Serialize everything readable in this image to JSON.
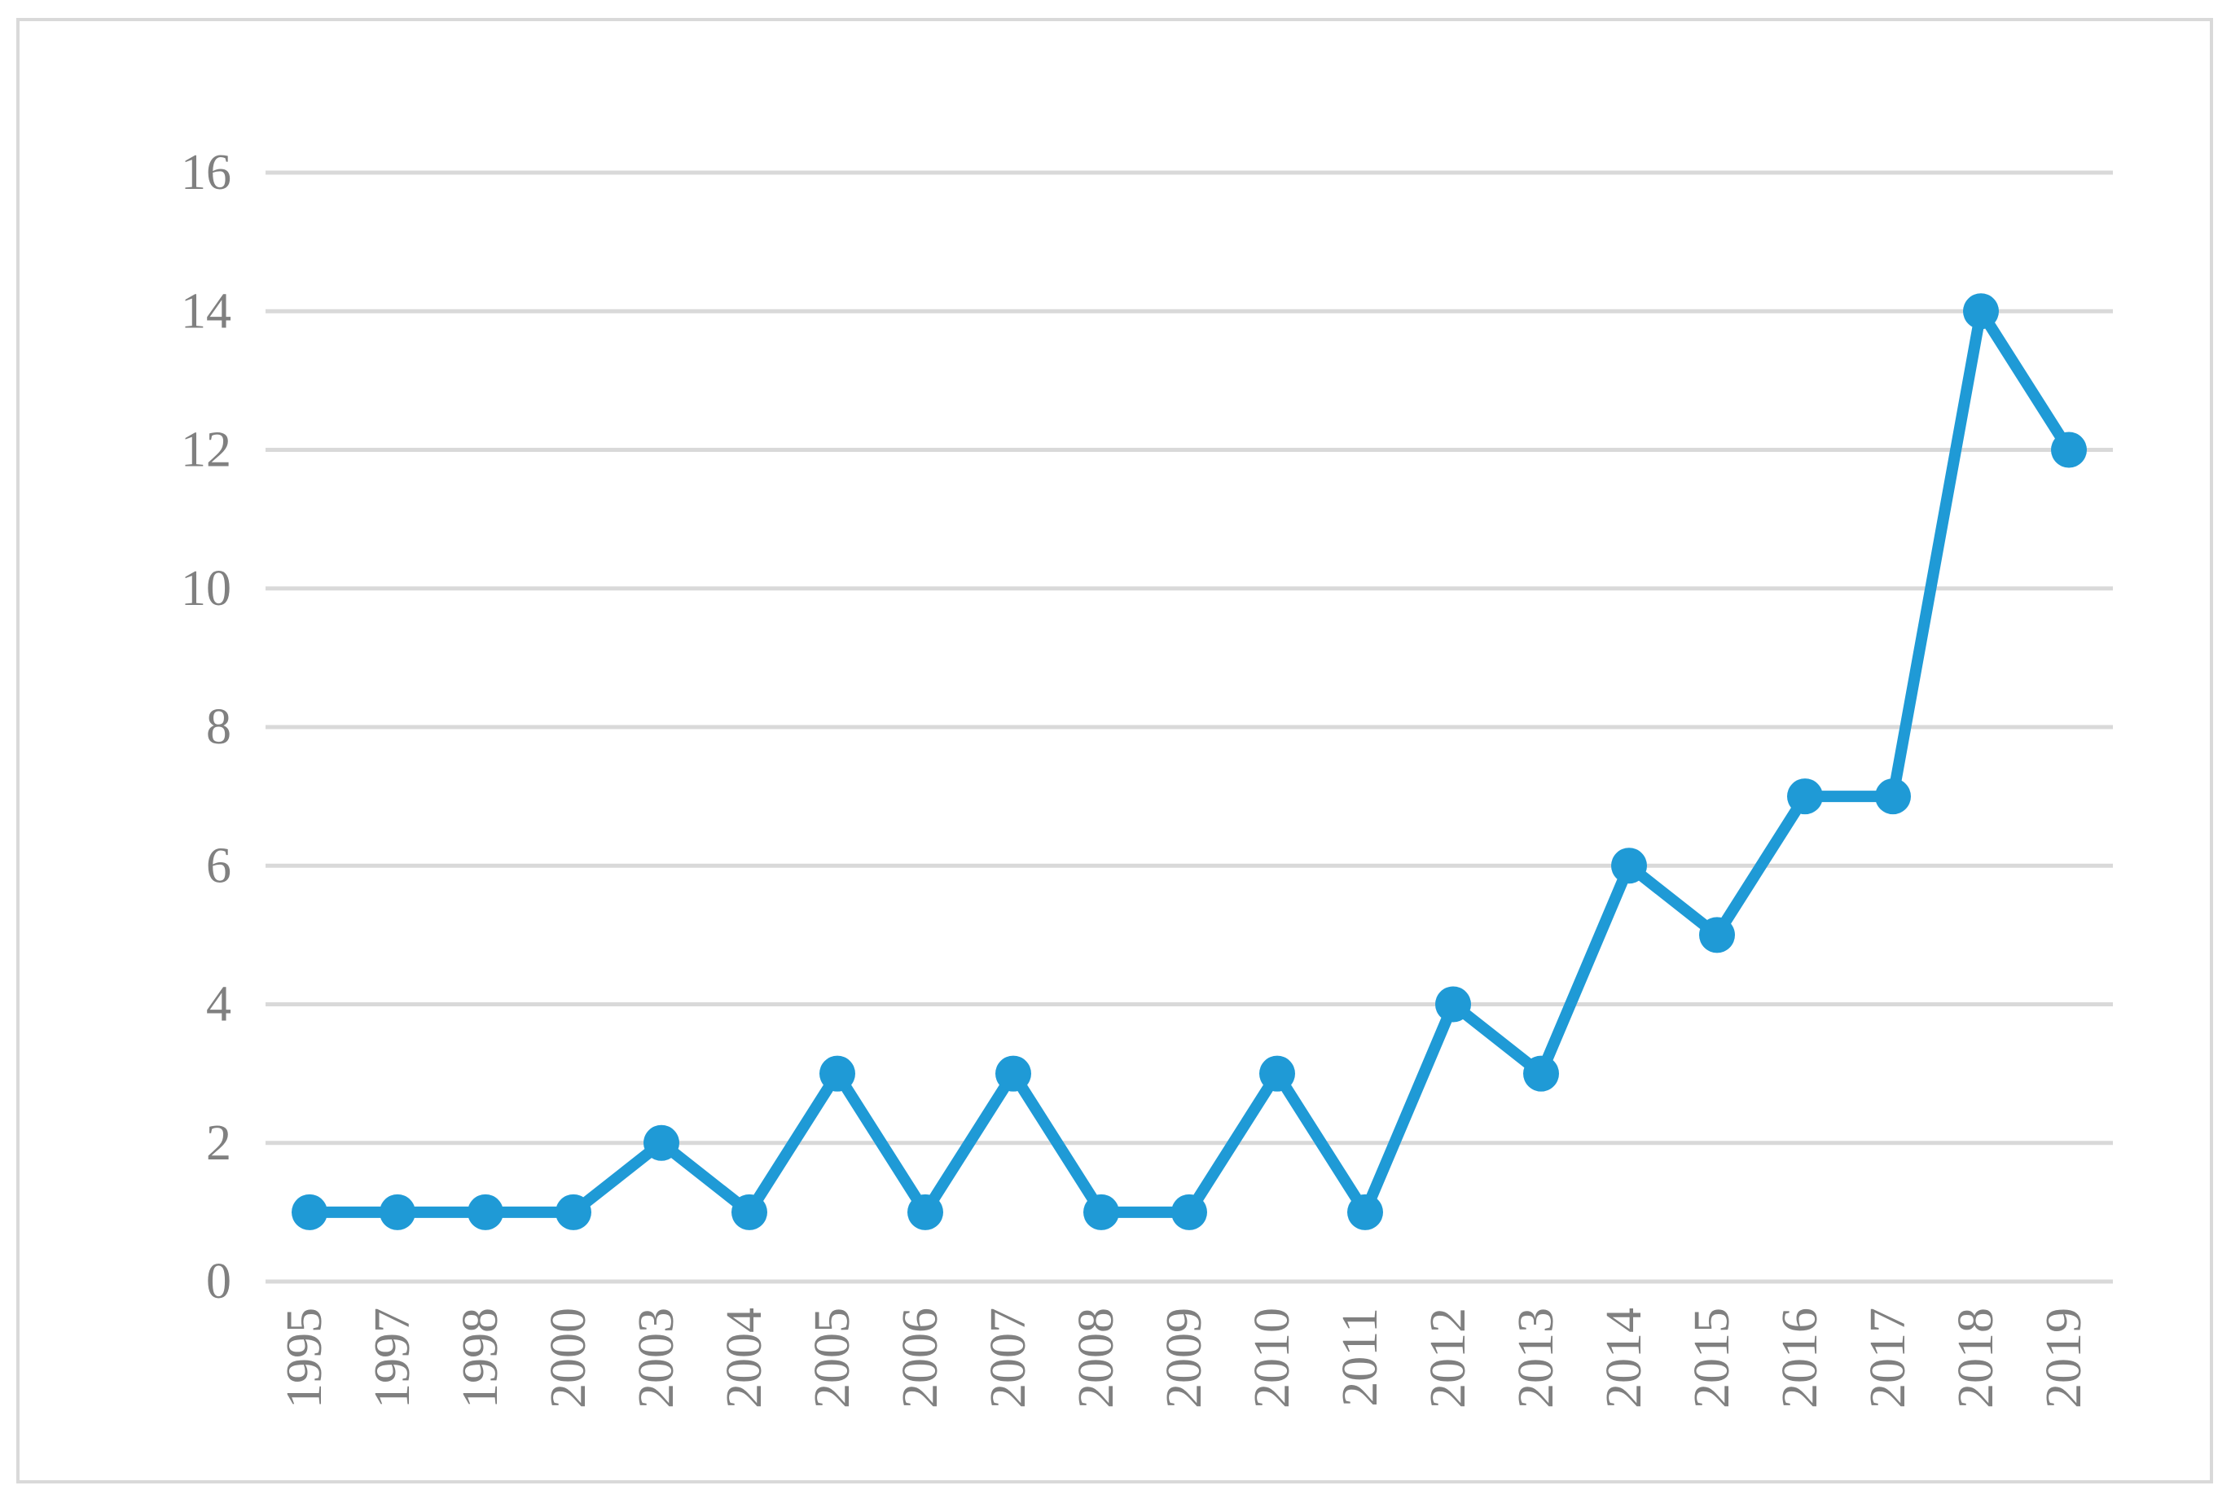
{
  "chart_data": {
    "type": "line",
    "title": "",
    "xlabel": "",
    "ylabel": "",
    "categories": [
      "1995",
      "1997",
      "1998",
      "2000",
      "2003",
      "2004",
      "2005",
      "2006",
      "2007",
      "2008",
      "2009",
      "2010",
      "2011",
      "2012",
      "2013",
      "2014",
      "2015",
      "2016",
      "2017",
      "2018",
      "2019"
    ],
    "series": [
      {
        "values": [
          1,
          1,
          1,
          1,
          2,
          1,
          3,
          1,
          3,
          1,
          1,
          3,
          1,
          4,
          3,
          6,
          5,
          7,
          7,
          14,
          12
        ]
      }
    ],
    "ylim": [
      0,
      16
    ],
    "yticks": [
      "0",
      "2",
      "4",
      "6",
      "8",
      "10",
      "12",
      "14",
      "16"
    ],
    "grid": "horizontal",
    "legend": "none",
    "colors": {
      "series": "#1f9ad6",
      "grid": "#d9d9d9",
      "tick_text": "#808080",
      "frame": "#d9d9d9"
    }
  }
}
